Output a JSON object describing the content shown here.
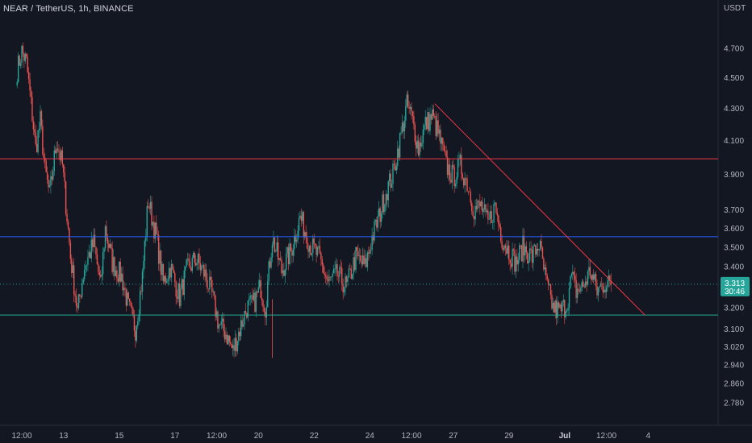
{
  "header": {
    "symbol": "NEAR / TetherUS",
    "interval": "1h",
    "exchange": "BINANCE",
    "sep1": ", ",
    "sep2": ", "
  },
  "currency_label": "USDT",
  "colors": {
    "background": "#131722",
    "up": "#26a69a",
    "down": "#ef5350",
    "resistance_line": "#f23645",
    "mid_line": "#2962ff",
    "support_line": "#22ab94",
    "trend_line": "#f23645",
    "price_badge": "#26a69a",
    "axis_text": "#b2b5be"
  },
  "chart_data": {
    "type": "candlestick",
    "title": "NEAR / TetherUS, 1h, BINANCE",
    "ylabel": "USDT",
    "y_scale": "log",
    "ylim": [
      2.73,
      4.93
    ],
    "y_ticks": [
      "4.700",
      "4.500",
      "4.300",
      "4.100",
      "3.900",
      "3.700",
      "3.600",
      "3.500",
      "3.400",
      "3.200",
      "3.100",
      "3.020",
      "2.940",
      "2.860",
      "2.780"
    ],
    "x_ticks": [
      "12:00",
      "13",
      "15",
      "17",
      "12:00",
      "20",
      "22",
      "24",
      "12:00",
      "27",
      "29",
      "Jul",
      "12:00",
      "4"
    ],
    "x_tick_dates": [
      "2022-06-11 12:00",
      "2022-06-13",
      "2022-06-15",
      "2022-06-17",
      "2022-06-18 12:00",
      "2022-06-20",
      "2022-06-22",
      "2022-06-24",
      "2022-06-25 12:00",
      "2022-06-27",
      "2022-06-29",
      "2022-07-01",
      "2022-07-02 12:00",
      "2022-07-04"
    ],
    "bold_x_tick": "Jul",
    "price_keypoints": [
      [
        "2022-06-11 08:00",
        4.55
      ],
      [
        "2022-06-11 12:00",
        4.68
      ],
      [
        "2022-06-11 16:00",
        4.6
      ],
      [
        "2022-06-12 00:00",
        4.05
      ],
      [
        "2022-06-12 04:00",
        4.22
      ],
      [
        "2022-06-12 08:00",
        3.92
      ],
      [
        "2022-06-12 12:00",
        3.78
      ],
      [
        "2022-06-12 18:00",
        4.1
      ],
      [
        "2022-06-12 23:00",
        3.95
      ],
      [
        "2022-06-13 06:00",
        3.45
      ],
      [
        "2022-06-13 12:00",
        3.18
      ],
      [
        "2022-06-13 18:00",
        3.4
      ],
      [
        "2022-06-14 02:00",
        3.52
      ],
      [
        "2022-06-14 08:00",
        3.3
      ],
      [
        "2022-06-14 12:00",
        3.6
      ],
      [
        "2022-06-14 18:00",
        3.42
      ],
      [
        "2022-06-15 02:00",
        3.35
      ],
      [
        "2022-06-15 08:00",
        3.2
      ],
      [
        "2022-06-15 14:00",
        3.1
      ],
      [
        "2022-06-15 20:00",
        3.35
      ],
      [
        "2022-06-16 01:00",
        3.75
      ],
      [
        "2022-06-16 08:00",
        3.55
      ],
      [
        "2022-06-16 14:00",
        3.32
      ],
      [
        "2022-06-16 20:00",
        3.4
      ],
      [
        "2022-06-17 04:00",
        3.25
      ],
      [
        "2022-06-17 10:00",
        3.38
      ],
      [
        "2022-06-17 18:00",
        3.44
      ],
      [
        "2022-06-18 02:00",
        3.36
      ],
      [
        "2022-06-18 08:00",
        3.26
      ],
      [
        "2022-06-18 14:00",
        3.12
      ],
      [
        "2022-06-18 20:00",
        3.08
      ],
      [
        "2022-06-19 02:00",
        3.0
      ],
      [
        "2022-06-19 08:00",
        3.1
      ],
      [
        "2022-06-19 14:00",
        3.2
      ],
      [
        "2022-06-19 20:00",
        3.22
      ],
      [
        "2022-06-20 02:00",
        3.3
      ],
      [
        "2022-06-20 06:00",
        3.2
      ],
      [
        "2022-06-20 12:00",
        3.55
      ],
      [
        "2022-06-20 20:00",
        3.38
      ],
      [
        "2022-06-21 04:00",
        3.48
      ],
      [
        "2022-06-21 12:00",
        3.66
      ],
      [
        "2022-06-21 20:00",
        3.52
      ],
      [
        "2022-06-22 04:00",
        3.45
      ],
      [
        "2022-06-22 12:00",
        3.32
      ],
      [
        "2022-06-22 20:00",
        3.36
      ],
      [
        "2022-06-23 04:00",
        3.3
      ],
      [
        "2022-06-23 12:00",
        3.45
      ],
      [
        "2022-06-23 20:00",
        3.4
      ],
      [
        "2022-06-24 02:00",
        3.55
      ],
      [
        "2022-06-24 08:00",
        3.66
      ],
      [
        "2022-06-24 14:00",
        3.8
      ],
      [
        "2022-06-24 20:00",
        3.9
      ],
      [
        "2022-06-25 02:00",
        4.1
      ],
      [
        "2022-06-25 08:00",
        4.32
      ],
      [
        "2022-06-25 12:00",
        4.25
      ],
      [
        "2022-06-25 18:00",
        4.05
      ],
      [
        "2022-06-26 00:00",
        4.2
      ],
      [
        "2022-06-26 06:00",
        4.25
      ],
      [
        "2022-06-26 12:00",
        4.12
      ],
      [
        "2022-06-26 18:00",
        3.95
      ],
      [
        "2022-06-27 00:00",
        3.88
      ],
      [
        "2022-06-27 06:00",
        3.95
      ],
      [
        "2022-06-27 12:00",
        3.85
      ],
      [
        "2022-06-27 18:00",
        3.7
      ],
      [
        "2022-06-28 00:00",
        3.72
      ],
      [
        "2022-06-28 06:00",
        3.62
      ],
      [
        "2022-06-28 12:00",
        3.72
      ],
      [
        "2022-06-28 18:00",
        3.55
      ],
      [
        "2022-06-29 00:00",
        3.48
      ],
      [
        "2022-06-29 06:00",
        3.42
      ],
      [
        "2022-06-29 12:00",
        3.5
      ],
      [
        "2022-06-29 20:00",
        3.45
      ],
      [
        "2022-06-30 02:00",
        3.52
      ],
      [
        "2022-06-30 08:00",
        3.32
      ],
      [
        "2022-06-30 14:00",
        3.2
      ],
      [
        "2022-06-30 20:00",
        3.18
      ],
      [
        "2022-07-01 02:00",
        3.22
      ],
      [
        "2022-07-01 06:00",
        3.35
      ],
      [
        "2022-07-01 10:00",
        3.28
      ],
      [
        "2022-07-01 16:00",
        3.3
      ],
      [
        "2022-07-01 22:00",
        3.38
      ],
      [
        "2022-07-02 04:00",
        3.28
      ],
      [
        "2022-07-02 10:00",
        3.32
      ],
      [
        "2022-07-02 16:00",
        3.31
      ]
    ],
    "horizontal_lines": [
      {
        "price": 3.99,
        "color": "#f23645"
      },
      {
        "price": 3.555,
        "color": "#2962ff"
      },
      {
        "price": 3.165,
        "color": "#22ab94"
      }
    ],
    "trend_line": {
      "from": {
        "time": "2022-06-26 08:00",
        "price": 4.33
      },
      "to": {
        "time": "2022-07-04 00:00",
        "price": 3.165
      },
      "color": "#f23645"
    },
    "last_price": "3.313",
    "countdown": "30:46"
  }
}
